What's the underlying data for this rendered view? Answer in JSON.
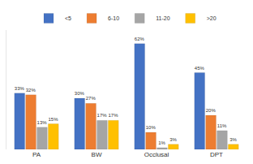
{
  "chart_data": {
    "type": "bar",
    "categories": [
      "PA",
      "BW",
      "Occlusal",
      "DPT"
    ],
    "series": [
      {
        "name": "<5",
        "color": "#4472c4",
        "values": [
          33,
          30,
          62,
          45
        ],
        "value_labels": [
          "33%",
          "30%",
          "62%",
          "45%"
        ]
      },
      {
        "name": "6-10",
        "color": "#ed7d31",
        "values": [
          32,
          27,
          10,
          20
        ],
        "value_labels": [
          "32%",
          "27%",
          "10%",
          "20%"
        ]
      },
      {
        "name": "11-20",
        "color": "#a5a5a5",
        "values": [
          13,
          17,
          1,
          11
        ],
        "value_labels": [
          "13%",
          "17%",
          "1%",
          "11%"
        ]
      },
      {
        "name": ">20",
        "color": "#ffc000",
        "values": [
          15,
          17,
          3,
          3
        ],
        "value_labels": [
          "15%",
          "17%",
          "3%",
          "3%"
        ]
      }
    ],
    "ylim": [
      0,
      70
    ],
    "grid": false,
    "legend": "top",
    "data_labels": true,
    "tick_labels": "x"
  }
}
